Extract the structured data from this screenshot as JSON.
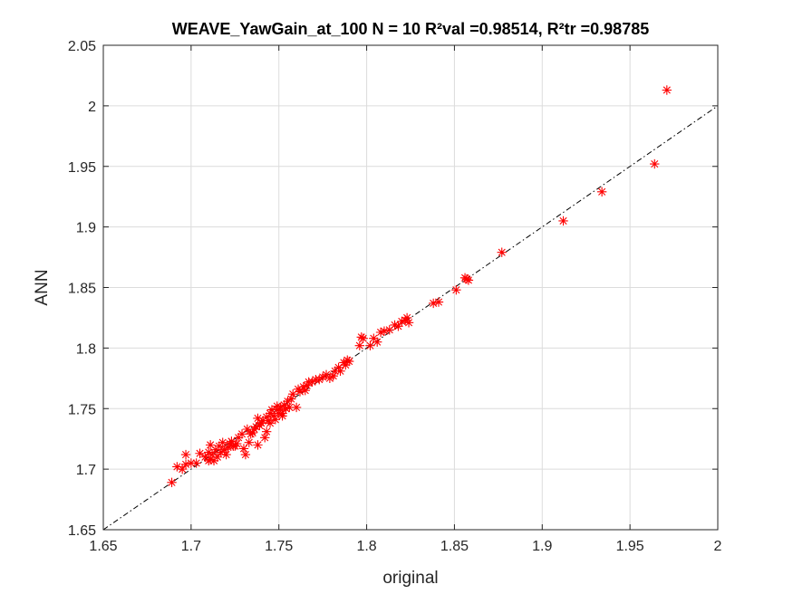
{
  "chart_data": {
    "type": "scatter",
    "title": "WEAVE_YawGain_at_100  N = 10 R²val =0.98514, R²tr =0.98785",
    "xlabel": "original",
    "ylabel": "ANN",
    "xlim": [
      1.65,
      2.0
    ],
    "ylim": [
      1.65,
      2.05
    ],
    "xticks": [
      1.65,
      1.7,
      1.75,
      1.8,
      1.85,
      1.9,
      1.95,
      2.0
    ],
    "xtick_labels": [
      "1.65",
      "1.7",
      "1.75",
      "1.8",
      "1.85",
      "1.9",
      "1.95",
      "2"
    ],
    "yticks": [
      1.65,
      1.7,
      1.75,
      1.8,
      1.85,
      1.9,
      1.95,
      2.0,
      2.05
    ],
    "ytick_labels": [
      "1.65",
      "1.7",
      "1.75",
      "1.8",
      "1.85",
      "1.9",
      "1.95",
      "2",
      "2.05"
    ],
    "grid": true,
    "marker": "asterisk",
    "marker_color": "#ff0000",
    "reference_line": {
      "style": "dash-dot",
      "color": "#000000",
      "x": [
        1.65,
        2.0
      ],
      "y": [
        1.65,
        2.0
      ]
    },
    "points": [
      [
        1.689,
        1.689
      ],
      [
        1.692,
        1.702
      ],
      [
        1.695,
        1.7
      ],
      [
        1.697,
        1.704
      ],
      [
        1.697,
        1.712
      ],
      [
        1.7,
        1.705
      ],
      [
        1.703,
        1.705
      ],
      [
        1.705,
        1.713
      ],
      [
        1.708,
        1.71
      ],
      [
        1.71,
        1.707
      ],
      [
        1.71,
        1.714
      ],
      [
        1.711,
        1.72
      ],
      [
        1.711,
        1.708
      ],
      [
        1.712,
        1.712
      ],
      [
        1.713,
        1.707
      ],
      [
        1.714,
        1.716
      ],
      [
        1.715,
        1.71
      ],
      [
        1.716,
        1.719
      ],
      [
        1.717,
        1.714
      ],
      [
        1.718,
        1.722
      ],
      [
        1.719,
        1.716
      ],
      [
        1.72,
        1.712
      ],
      [
        1.721,
        1.718
      ],
      [
        1.722,
        1.721
      ],
      [
        1.723,
        1.723
      ],
      [
        1.724,
        1.719
      ],
      [
        1.725,
        1.719
      ],
      [
        1.726,
        1.721
      ],
      [
        1.727,
        1.726
      ],
      [
        1.729,
        1.729
      ],
      [
        1.73,
        1.717
      ],
      [
        1.731,
        1.712
      ],
      [
        1.732,
        1.733
      ],
      [
        1.733,
        1.722
      ],
      [
        1.734,
        1.729
      ],
      [
        1.735,
        1.73
      ],
      [
        1.736,
        1.733
      ],
      [
        1.737,
        1.735
      ],
      [
        1.738,
        1.742
      ],
      [
        1.738,
        1.72
      ],
      [
        1.739,
        1.736
      ],
      [
        1.74,
        1.738
      ],
      [
        1.741,
        1.74
      ],
      [
        1.742,
        1.726
      ],
      [
        1.743,
        1.731
      ],
      [
        1.743,
        1.743
      ],
      [
        1.744,
        1.74
      ],
      [
        1.745,
        1.746
      ],
      [
        1.745,
        1.738
      ],
      [
        1.746,
        1.749
      ],
      [
        1.747,
        1.744
      ],
      [
        1.748,
        1.741
      ],
      [
        1.749,
        1.749
      ],
      [
        1.749,
        1.752
      ],
      [
        1.75,
        1.746
      ],
      [
        1.751,
        1.751
      ],
      [
        1.752,
        1.746
      ],
      [
        1.752,
        1.744
      ],
      [
        1.753,
        1.753
      ],
      [
        1.754,
        1.75
      ],
      [
        1.755,
        1.756
      ],
      [
        1.756,
        1.751
      ],
      [
        1.757,
        1.758
      ],
      [
        1.758,
        1.762
      ],
      [
        1.76,
        1.751
      ],
      [
        1.761,
        1.766
      ],
      [
        1.762,
        1.764
      ],
      [
        1.764,
        1.768
      ],
      [
        1.765,
        1.765
      ],
      [
        1.766,
        1.769
      ],
      [
        1.767,
        1.772
      ],
      [
        1.769,
        1.772
      ],
      [
        1.771,
        1.774
      ],
      [
        1.773,
        1.774
      ],
      [
        1.775,
        1.776
      ],
      [
        1.777,
        1.778
      ],
      [
        1.779,
        1.775
      ],
      [
        1.781,
        1.777
      ],
      [
        1.782,
        1.781
      ],
      [
        1.784,
        1.784
      ],
      [
        1.785,
        1.781
      ],
      [
        1.787,
        1.788
      ],
      [
        1.788,
        1.786
      ],
      [
        1.789,
        1.79
      ],
      [
        1.79,
        1.789
      ],
      [
        1.796,
        1.802
      ],
      [
        1.797,
        1.809
      ],
      [
        1.798,
        1.808
      ],
      [
        1.802,
        1.802
      ],
      [
        1.804,
        1.808
      ],
      [
        1.806,
        1.805
      ],
      [
        1.808,
        1.813
      ],
      [
        1.81,
        1.814
      ],
      [
        1.813,
        1.815
      ],
      [
        1.816,
        1.819
      ],
      [
        1.818,
        1.818
      ],
      [
        1.82,
        1.822
      ],
      [
        1.822,
        1.823
      ],
      [
        1.823,
        1.825
      ],
      [
        1.824,
        1.821
      ],
      [
        1.838,
        1.837
      ],
      [
        1.841,
        1.838
      ],
      [
        1.851,
        1.848
      ],
      [
        1.856,
        1.858
      ],
      [
        1.857,
        1.857
      ],
      [
        1.858,
        1.856
      ],
      [
        1.877,
        1.879
      ],
      [
        1.912,
        1.905
      ],
      [
        1.934,
        1.929
      ],
      [
        1.964,
        1.952
      ],
      [
        1.971,
        2.013
      ]
    ]
  }
}
